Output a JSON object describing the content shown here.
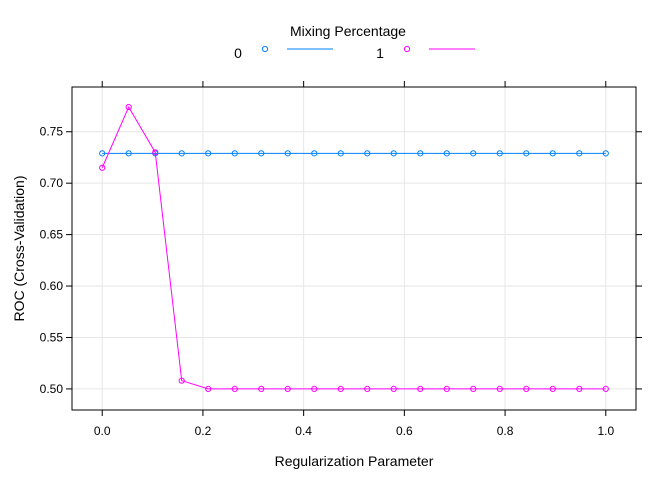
{
  "chart_data": {
    "type": "line",
    "title": "",
    "xlabel": "Regularization Parameter",
    "ylabel": "ROC (Cross-Validation)",
    "xlim": [
      -0.06,
      1.06
    ],
    "ylim": [
      0.4795,
      0.7935
    ],
    "xticks": [
      0.0,
      0.2,
      0.4,
      0.6,
      0.8,
      1.0
    ],
    "xtick_labels": [
      "0.0",
      "0.2",
      "0.4",
      "0.6",
      "0.8",
      "1.0"
    ],
    "yticks": [
      0.5,
      0.55,
      0.6,
      0.65,
      0.7,
      0.75
    ],
    "ytick_labels": [
      "0.50",
      "0.55",
      "0.60",
      "0.65",
      "0.70",
      "0.75"
    ],
    "grid": true,
    "legend": {
      "title": "Mixing Percentage",
      "placement": "top"
    },
    "x": [
      0.0,
      0.0526,
      0.1053,
      0.1579,
      0.2105,
      0.2632,
      0.3158,
      0.3684,
      0.4211,
      0.4737,
      0.5263,
      0.5789,
      0.6316,
      0.6842,
      0.7368,
      0.7895,
      0.8421,
      0.8947,
      0.9474,
      1.0
    ],
    "series": [
      {
        "name": "0",
        "color": "#0080FF",
        "marker": "circle-open",
        "values": [
          0.729,
          0.729,
          0.729,
          0.729,
          0.729,
          0.729,
          0.729,
          0.729,
          0.729,
          0.729,
          0.729,
          0.729,
          0.729,
          0.729,
          0.729,
          0.729,
          0.729,
          0.729,
          0.729,
          0.729
        ]
      },
      {
        "name": "1",
        "color": "#FF00FF",
        "marker": "circle-open",
        "values": [
          0.715,
          0.774,
          0.73,
          0.508,
          0.5,
          0.5,
          0.5,
          0.5,
          0.5,
          0.5,
          0.5,
          0.5,
          0.5,
          0.5,
          0.5,
          0.5,
          0.5,
          0.5,
          0.5,
          0.5
        ]
      }
    ]
  }
}
